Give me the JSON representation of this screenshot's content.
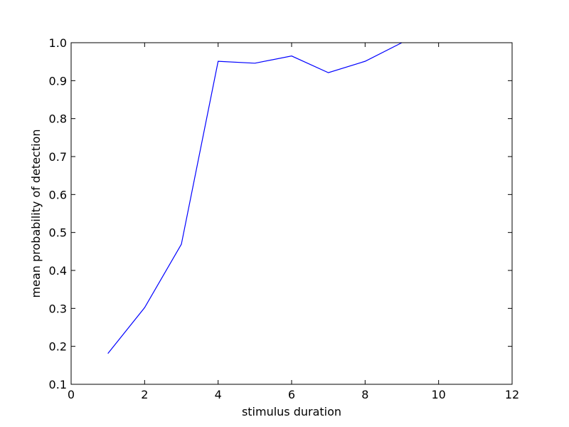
{
  "chart_data": {
    "type": "line",
    "title": "",
    "xlabel": "stimulus duration",
    "ylabel": "mean probability of detection",
    "xlim": [
      0,
      12
    ],
    "ylim": [
      0.1,
      1.0
    ],
    "xticks": [
      0,
      2,
      4,
      6,
      8,
      10,
      12
    ],
    "yticks": [
      0.1,
      0.2,
      0.3,
      0.4,
      0.5,
      0.6,
      0.7,
      0.8,
      0.9,
      1.0
    ],
    "xtick_labels": [
      "0",
      "2",
      "4",
      "6",
      "8",
      "10",
      "12"
    ],
    "ytick_labels": [
      "0.1",
      "0.2",
      "0.3",
      "0.4",
      "0.5",
      "0.6",
      "0.7",
      "0.8",
      "0.9",
      "1.0"
    ],
    "grid": false,
    "series": [
      {
        "color": "#0000ff",
        "x": [
          1,
          2,
          3,
          4,
          5,
          6,
          7,
          8,
          9
        ],
        "y": [
          0.181,
          0.302,
          0.469,
          0.951,
          0.946,
          0.965,
          0.921,
          0.951,
          1.0
        ]
      }
    ]
  }
}
